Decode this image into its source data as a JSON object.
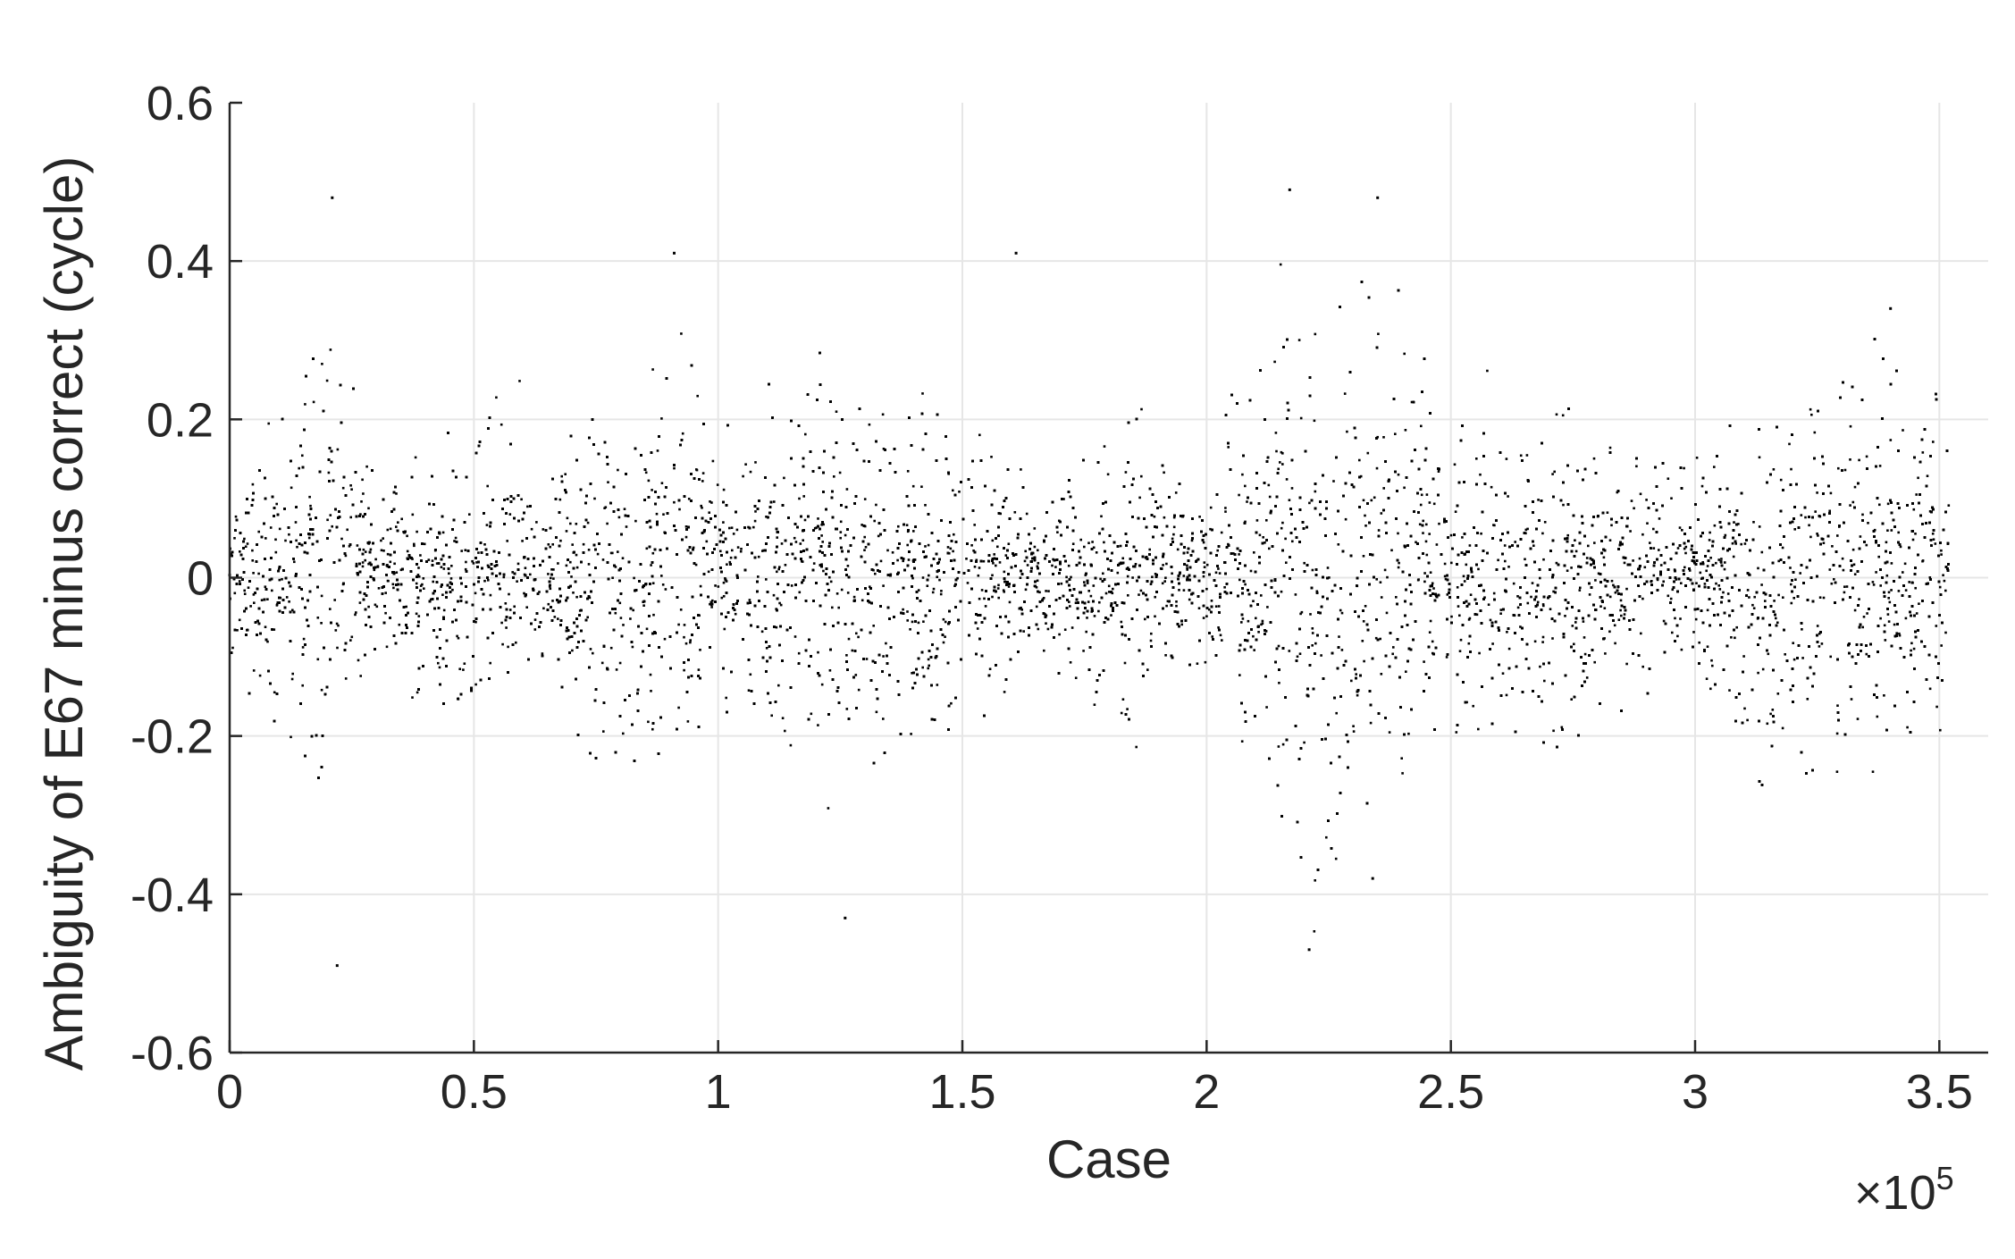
{
  "chart_data": {
    "type": "scatter",
    "title": "",
    "xlabel": "Case",
    "ylabel": "Ambiguity of E67 minus correct (cycle)",
    "x_exponent_label": {
      "prefix": "×10",
      "power": "5"
    },
    "xlim": [
      0,
      3.6
    ],
    "ylim": [
      -0.6,
      0.6
    ],
    "x_scale_factor": 100000,
    "x_ticks": [
      0,
      0.5,
      1,
      1.5,
      2,
      2.5,
      3,
      3.5
    ],
    "x_tick_labels": [
      "0",
      "0.5",
      "1",
      "1.5",
      "2",
      "2.5",
      "3",
      "3.5"
    ],
    "y_ticks": [
      -0.6,
      -0.4,
      -0.2,
      0,
      0.2,
      0.4,
      0.6
    ],
    "y_tick_labels": [
      "-0.6",
      "-0.4",
      "-0.2",
      "0",
      "0.2",
      "0.4",
      "0.6"
    ],
    "grid": true,
    "x_data_range": [
      0,
      3.52
    ],
    "marker_color": "#000000",
    "series": [
      {
        "name": "",
        "description_of_envelope_by_case_x1e5": [
          {
            "x": 0.0,
            "upper": 0.15,
            "lower": -0.14
          },
          {
            "x": 0.1,
            "upper": 0.18,
            "lower": -0.2
          },
          {
            "x": 0.2,
            "upper": 0.43,
            "lower": -0.25
          },
          {
            "x": 0.3,
            "upper": 0.12,
            "lower": -0.1
          },
          {
            "x": 0.4,
            "upper": 0.15,
            "lower": -0.18
          },
          {
            "x": 0.58,
            "upper": 0.28,
            "lower": -0.12
          },
          {
            "x": 0.65,
            "upper": 0.12,
            "lower": -0.1
          },
          {
            "x": 0.7,
            "upper": 0.2,
            "lower": -0.25
          },
          {
            "x": 0.85,
            "upper": 0.3,
            "lower": -0.22
          },
          {
            "x": 0.9,
            "upper": 0.39,
            "lower": -0.25
          },
          {
            "x": 1.0,
            "upper": 0.22,
            "lower": -0.18
          },
          {
            "x": 1.13,
            "upper": 0.3,
            "lower": -0.2
          },
          {
            "x": 1.25,
            "upper": 0.22,
            "lower": -0.35
          },
          {
            "x": 1.4,
            "upper": 0.22,
            "lower": -0.2
          },
          {
            "x": 1.55,
            "upper": 0.18,
            "lower": -0.2
          },
          {
            "x": 1.65,
            "upper": 0.12,
            "lower": -0.08
          },
          {
            "x": 1.75,
            "upper": 0.15,
            "lower": -0.18
          },
          {
            "x": 1.87,
            "upper": 0.25,
            "lower": -0.2
          },
          {
            "x": 1.95,
            "upper": 0.12,
            "lower": -0.12
          },
          {
            "x": 2.1,
            "upper": 0.3,
            "lower": -0.2
          },
          {
            "x": 2.2,
            "upper": 0.42,
            "lower": -0.4
          },
          {
            "x": 2.35,
            "upper": 0.45,
            "lower": -0.3
          },
          {
            "x": 2.5,
            "upper": 0.2,
            "lower": -0.2
          },
          {
            "x": 2.75,
            "upper": 0.22,
            "lower": -0.22
          },
          {
            "x": 3.0,
            "upper": 0.15,
            "lower": -0.1
          },
          {
            "x": 3.1,
            "upper": 0.22,
            "lower": -0.27
          },
          {
            "x": 3.25,
            "upper": 0.25,
            "lower": -0.25
          },
          {
            "x": 3.4,
            "upper": 0.3,
            "lower": -0.25
          },
          {
            "x": 3.52,
            "upper": 0.22,
            "lower": -0.2
          }
        ],
        "outliers_x1e5": [
          {
            "x": 0.21,
            "y": 0.48
          },
          {
            "x": 0.22,
            "y": -0.49
          },
          {
            "x": 0.91,
            "y": 0.41
          },
          {
            "x": 1.26,
            "y": -0.43
          },
          {
            "x": 1.61,
            "y": 0.41
          },
          {
            "x": 2.17,
            "y": 0.49
          },
          {
            "x": 2.21,
            "y": -0.47
          },
          {
            "x": 2.35,
            "y": 0.48
          },
          {
            "x": 2.34,
            "y": -0.38
          },
          {
            "x": 3.4,
            "y": 0.34
          }
        ]
      }
    ]
  }
}
